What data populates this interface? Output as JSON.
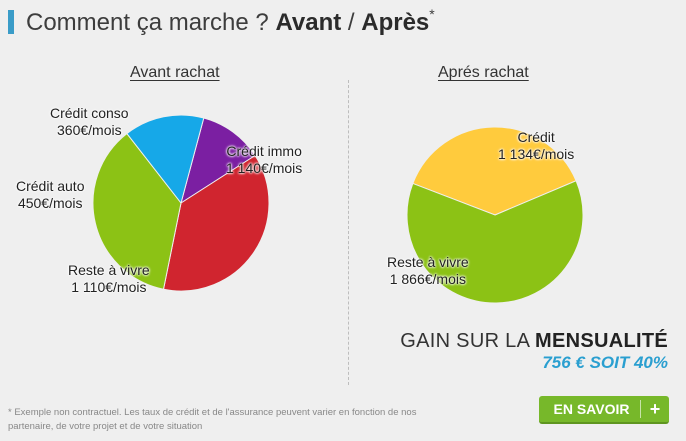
{
  "header": {
    "title_prefix": "Comment ça marche ?",
    "title_before": "Avant",
    "title_sep": "/",
    "title_after": "Après",
    "title_star": "*"
  },
  "chart_data": [
    {
      "type": "pie",
      "title": "Avant rachat",
      "slices": [
        {
          "label": "Crédit conso",
          "value": 360,
          "display": "360€/mois",
          "color": "#7b1fa2"
        },
        {
          "label": "Crédit immo",
          "value": 1140,
          "display": "1 140€/mois",
          "color": "#d0252f"
        },
        {
          "label": "Reste à vivre",
          "value": 1110,
          "display": "1 110€/mois",
          "color": "#8cc215"
        },
        {
          "label": "Crédit auto",
          "value": 450,
          "display": "450€/mois",
          "color": "#16a8e8"
        }
      ]
    },
    {
      "type": "pie",
      "title": "Aprés rachat",
      "slices": [
        {
          "label": "Crédit",
          "value": 1134,
          "display": "1 134€/mois",
          "color": "#ffcb3d"
        },
        {
          "label": "Reste à vivre",
          "value": 1866,
          "display": "1 866€/mois",
          "color": "#8cc215"
        }
      ]
    }
  ],
  "gain": {
    "prefix": "GAIN SUR LA",
    "bold": "MENSUALITÉ",
    "amount": "756 € SOIT 40%"
  },
  "footnote": "* Exemple non contractuel. Les taux de crédit et de l'assurance peuvent varier en fonction de nos partenaire, de votre projet et de votre situation",
  "cta": {
    "label": "EN SAVOIR",
    "plus": "+"
  }
}
